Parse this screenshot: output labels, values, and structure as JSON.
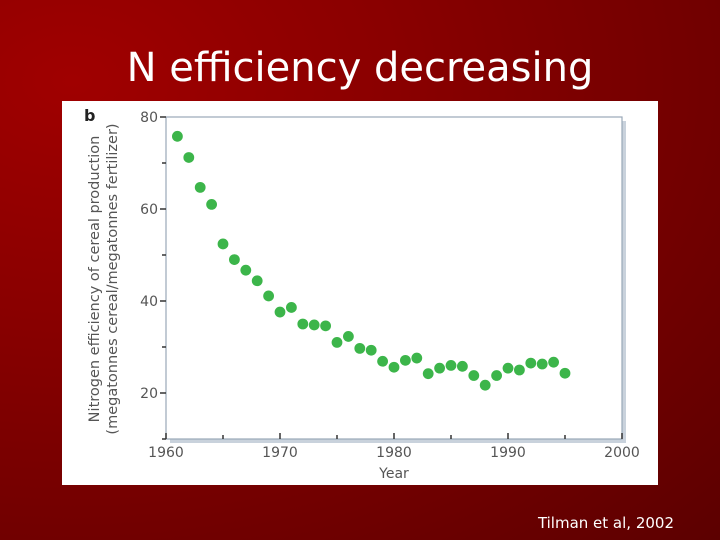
{
  "slide": {
    "title": "N efficiency decreasing",
    "citation": "Tilman et al, 2002"
  },
  "colors": {
    "background": "#8a0000",
    "point": "#3cb54a",
    "axis_text": "#555555",
    "plot_border": "#9aa8b8"
  },
  "chart_data": {
    "type": "scatter",
    "panel_label": "b",
    "xlabel": "Year",
    "ylabel_line1": "Nitrogen efficiency of cereal production",
    "ylabel_line2": "(megatonnes cereal/megatonnes fertilizer)",
    "xlim": [
      1960,
      2000
    ],
    "ylim": [
      10,
      80
    ],
    "x_ticks": [
      1960,
      1970,
      1980,
      1990,
      2000
    ],
    "x_tick_labels": [
      "1960",
      "1970",
      "1980",
      "1990",
      "2000"
    ],
    "y_ticks": [
      20,
      40,
      60,
      80
    ],
    "y_tick_labels": [
      "20",
      "40",
      "60",
      "80"
    ],
    "grid": false,
    "legend": "none",
    "x": [
      1961,
      1962,
      1963,
      1964,
      1965,
      1966,
      1967,
      1968,
      1969,
      1970,
      1971,
      1972,
      1973,
      1974,
      1975,
      1976,
      1977,
      1978,
      1979,
      1980,
      1981,
      1982,
      1983,
      1984,
      1985,
      1986,
      1987,
      1988,
      1989,
      1990,
      1991,
      1992,
      1993,
      1994,
      1995
    ],
    "y": [
      75.8,
      71.2,
      64.7,
      61,
      52.4,
      49,
      46.7,
      44.4,
      41.1,
      37.6,
      38.6,
      35,
      34.8,
      34.6,
      31,
      32.3,
      29.7,
      29.3,
      26.9,
      25.6,
      27.1,
      27.6,
      24.2,
      25.4,
      26,
      25.8,
      23.8,
      21.7,
      23.8,
      25.4,
      25,
      26.5,
      26.3,
      26.7,
      24.3
    ]
  }
}
